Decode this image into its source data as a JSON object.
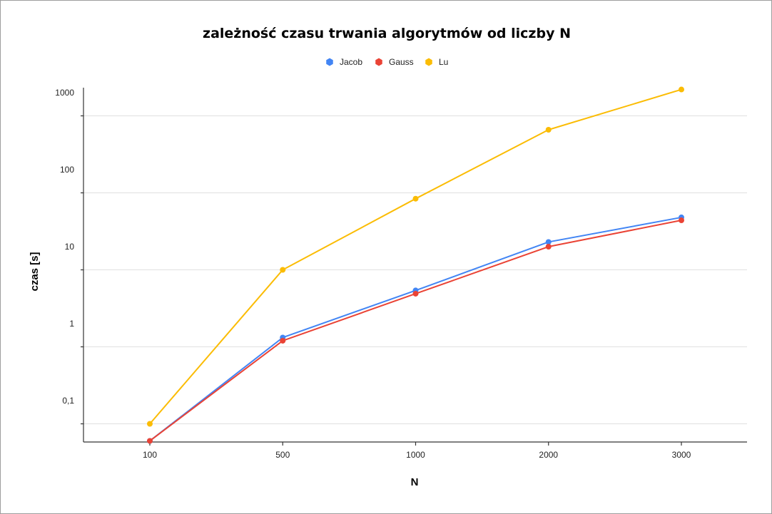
{
  "chart_data": {
    "type": "line",
    "title": "zależność czasu trwania algorytmów od liczby N",
    "xlabel": "N",
    "ylabel": "czas [s]",
    "y_scale": "log",
    "ylim": [
      0.03,
      1100
    ],
    "grid": true,
    "legend_position": "top",
    "categories": [
      "100",
      "500",
      "1000",
      "2000",
      "3000"
    ],
    "y_tick_labels": [
      {
        "value": 0.1,
        "label": "0,1"
      },
      {
        "value": 1,
        "label": "1"
      },
      {
        "value": 10,
        "label": "10"
      },
      {
        "value": 100,
        "label": "100"
      },
      {
        "value": 1000,
        "label": "1000"
      }
    ],
    "y_minor_ticks": [
      0.05,
      0.5,
      5,
      50,
      500
    ],
    "series": [
      {
        "name": "Jacob",
        "color": "#4285f4",
        "values": [
          0.03,
          0.66,
          2.7,
          11.5,
          24
        ]
      },
      {
        "name": "Gauss",
        "color": "#ea4335",
        "values": [
          0.03,
          0.6,
          2.45,
          10,
          22
        ]
      },
      {
        "name": "Lu",
        "color": "#fbbc04",
        "values": [
          0.05,
          5,
          42,
          330,
          1100
        ]
      }
    ]
  }
}
